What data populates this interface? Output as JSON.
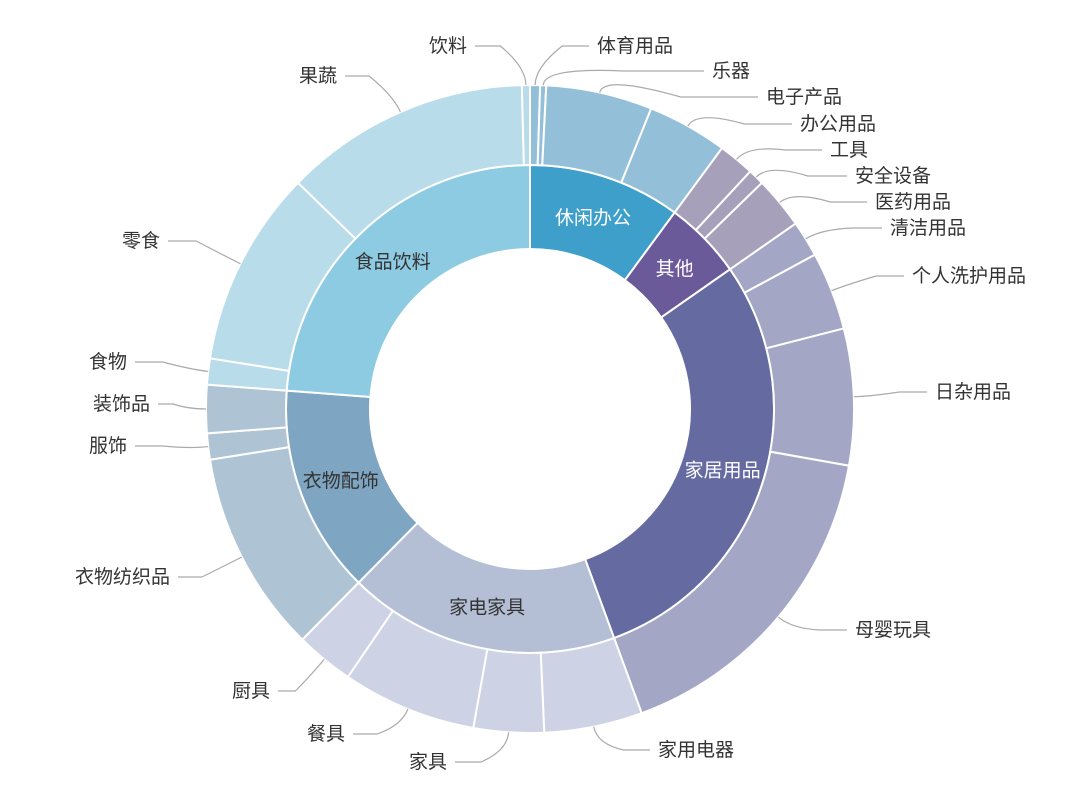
{
  "chart_data": {
    "type": "sunburst",
    "title": "",
    "unit": "share (%)",
    "inner": [
      {
        "name": "休闲办公",
        "color": "#3d9fca",
        "outer_color": "#93bfd8",
        "label_color": "#ffffff",
        "children": [
          {
            "name": "体育用品",
            "value": 0.5
          },
          {
            "name": "乐器",
            "value": 0.3
          },
          {
            "name": "电子产品",
            "value": 5.3
          },
          {
            "name": "办公用品",
            "value": 4.0
          }
        ]
      },
      {
        "name": "其他",
        "color": "#6b5a9a",
        "outer_color": "#a6a0bb",
        "label_color": "#ffffff",
        "children": [
          {
            "name": "工具",
            "value": 1.8
          },
          {
            "name": "安全设备",
            "value": 0.8
          },
          {
            "name": "医药用品",
            "value": 2.6
          }
        ]
      },
      {
        "name": "家居用品",
        "color": "#656ba0",
        "outer_color": "#a3a7c5",
        "label_color": "#ffffff",
        "children": [
          {
            "name": "清洁用品",
            "value": 1.8
          },
          {
            "name": "个人洗护用品",
            "value": 3.9
          },
          {
            "name": "日杂用品",
            "value": 6.8
          },
          {
            "name": "母婴玩具",
            "value": 16.6
          }
        ]
      },
      {
        "name": "家电家具",
        "color": "#b4bed4",
        "outer_color": "#cdd3e4",
        "label_color": "#333333",
        "children": [
          {
            "name": "家用电器",
            "value": 4.9
          },
          {
            "name": "家具",
            "value": 3.5
          },
          {
            "name": "餐具",
            "value": 6.7
          },
          {
            "name": "厨具",
            "value": 2.9
          }
        ]
      },
      {
        "name": "衣物配饰",
        "color": "#7ea5c1",
        "outer_color": "#aec4d4",
        "label_color": "#333333",
        "children": [
          {
            "name": "衣物纺织品",
            "value": 10.1
          },
          {
            "name": "服饰",
            "value": 1.3
          },
          {
            "name": "装饰品",
            "value": 2.4
          }
        ]
      },
      {
        "name": "食品饮料",
        "color": "#8dcbe3",
        "outer_color": "#b9dcea",
        "label_color": "#333333",
        "children": [
          {
            "name": "食物",
            "value": 1.3
          },
          {
            "name": "零食",
            "value": 9.8
          },
          {
            "name": "果蔬",
            "value": 12.3
          },
          {
            "name": "饮料",
            "value": 0.4
          }
        ]
      }
    ],
    "start_angle": "12 o'clock, clockwise",
    "legend": "none"
  }
}
